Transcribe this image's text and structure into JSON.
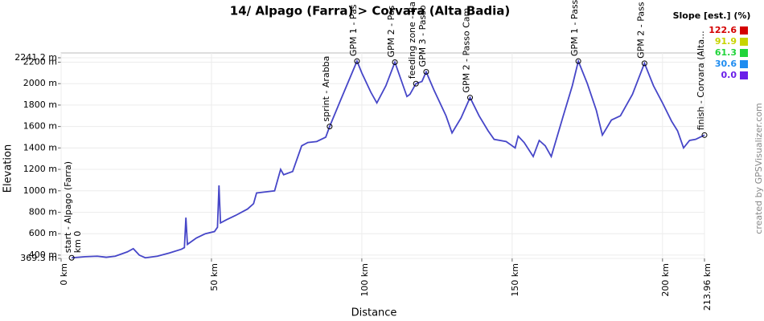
{
  "chart_data": {
    "type": "line",
    "title": "14/ Alpago (Farra) > Corvara (Alta Badia)",
    "x_label": "Distance",
    "y_label": "Elevation",
    "x": [
      3.5,
      8,
      12,
      15,
      18,
      22,
      24,
      26,
      28,
      32,
      36,
      40,
      41,
      41.5,
      42,
      45,
      48,
      51,
      52,
      52.5,
      53,
      55,
      58,
      62,
      64,
      65,
      68,
      71,
      72,
      73,
      74,
      77,
      80,
      82,
      85,
      88,
      89.3,
      93,
      96,
      98.4,
      100,
      103,
      105,
      108,
      111,
      113,
      115,
      116,
      118,
      120,
      121.4,
      124,
      128,
      130,
      133,
      136,
      139,
      142,
      144,
      148,
      151,
      152,
      154,
      157,
      159,
      161,
      163,
      167,
      170,
      172,
      175,
      178,
      180,
      183,
      186,
      190,
      194,
      197,
      200,
      203,
      205,
      207,
      209,
      211,
      213.96
    ],
    "series": [
      {
        "color": "#4646c8",
        "values": [
          375,
          385,
          390,
          380,
          390,
          430,
          460,
          400,
          375,
          390,
          420,
          455,
          470,
          750,
          500,
          560,
          600,
          620,
          660,
          1050,
          700,
          730,
          770,
          830,
          880,
          980,
          990,
          1000,
          1100,
          1200,
          1150,
          1180,
          1420,
          1450,
          1460,
          1500,
          1600,
          1850,
          2050,
          2210,
          2100,
          1920,
          1820,
          1980,
          2200,
          2040,
          1880,
          1900,
          2000,
          2020,
          2110,
          1940,
          1700,
          1540,
          1680,
          1870,
          1700,
          1560,
          1480,
          1460,
          1400,
          1510,
          1450,
          1320,
          1470,
          1420,
          1320,
          1700,
          1980,
          2210,
          2000,
          1750,
          1520,
          1660,
          1700,
          1900,
          2190,
          1980,
          1820,
          1650,
          1560,
          1400,
          1470,
          1480,
          1520
        ]
      }
    ],
    "xlim": [
      0,
      213.96
    ],
    "xticks": [
      {
        "value": 0,
        "label": "0 km"
      },
      {
        "value": 50,
        "label": "50 km"
      },
      {
        "value": 100,
        "label": "100 km"
      },
      {
        "value": 150,
        "label": "150 km"
      },
      {
        "value": 200,
        "label": "200 km"
      },
      {
        "value": 213.96,
        "label": "213.96 km"
      }
    ],
    "ylim": [
      369.3,
      2241.2
    ],
    "yticks": [
      {
        "value": 369.3,
        "label": "369.3 m"
      },
      {
        "value": 400,
        "label": "400 m"
      },
      {
        "value": 600,
        "label": "600 m"
      },
      {
        "value": 800,
        "label": "800 m"
      },
      {
        "value": 1000,
        "label": "1000 m"
      },
      {
        "value": 1200,
        "label": "1200 m"
      },
      {
        "value": 1400,
        "label": "1400 m"
      },
      {
        "value": 1600,
        "label": "1600 m"
      },
      {
        "value": 1800,
        "label": "1800 m"
      },
      {
        "value": 2000,
        "label": "2000 m"
      },
      {
        "value": 2200,
        "label": "2200 m"
      },
      {
        "value": 2241.2,
        "label": "2241.2 m"
      }
    ],
    "grid": true,
    "waypoints": [
      {
        "x": 3.5,
        "y": 375,
        "label": "start - Alpago (Farra)",
        "sub": "km 0"
      },
      {
        "x": 89.3,
        "y": 1600,
        "label": "sprint - Arabba"
      },
      {
        "x": 98.4,
        "y": 2210,
        "label": "GPM 1 - Pas"
      },
      {
        "x": 111,
        "y": 2200,
        "label": "GPM 2 - Pas"
      },
      {
        "x": 118,
        "y": 2000,
        "label": "feeding zone - Ba"
      },
      {
        "x": 121.4,
        "y": 2110,
        "label": "GPM 3 - Passo"
      },
      {
        "x": 136,
        "y": 1870,
        "label": "GPM 2 - Passo Cam"
      },
      {
        "x": 172,
        "y": 2210,
        "label": "GPM 1 - Pass"
      },
      {
        "x": 194,
        "y": 2190,
        "label": "GPM 2 - Pass"
      },
      {
        "x": 213.96,
        "y": 1520,
        "label": "finish - Corvara (Alta..."
      }
    ],
    "slope_legend": {
      "title": "Slope [est.] (%)",
      "items": [
        {
          "value": 122.6,
          "color": "#d40000"
        },
        {
          "value": 91.9,
          "color": "#c8d400"
        },
        {
          "value": 61.3,
          "color": "#21d43a"
        },
        {
          "value": 30.6,
          "color": "#1e8cf0"
        },
        {
          "value": 0,
          "label": "0.0",
          "color": "#6a1ee8"
        }
      ]
    }
  },
  "credit": "created by GPSVisualizer.com"
}
